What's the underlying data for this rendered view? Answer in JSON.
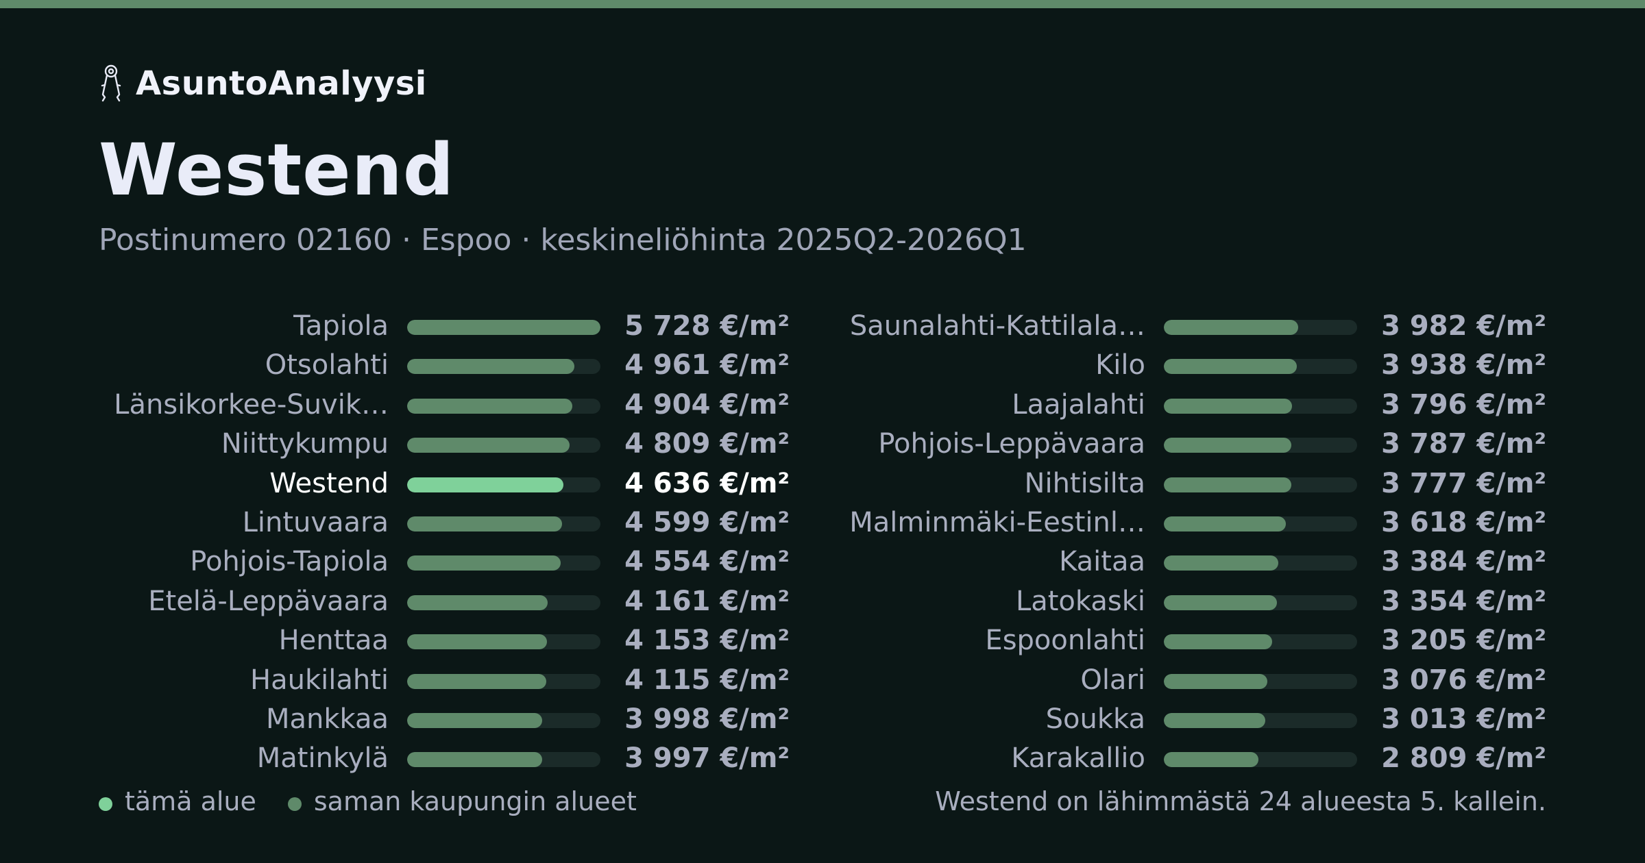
{
  "brand": {
    "name": "AsuntoAnalyysi",
    "icon": "keys-icon"
  },
  "title": "Westend",
  "subtitle": "Postinumero 02160 · Espoo · keskineliöhinta 2025Q2-2026Q1",
  "colors": {
    "accent": "#7fd19a",
    "bar": "#5f8a6a",
    "track": "#1b2b29",
    "background": "#0b1716"
  },
  "chart_data": {
    "type": "bar",
    "orientation": "horizontal",
    "unit": "€/m²",
    "max_value": 5728,
    "highlight": "Westend",
    "columns": [
      [
        {
          "name": "Tapiola",
          "value": 5728,
          "label": "5 728 €/m²"
        },
        {
          "name": "Otsolahti",
          "value": 4961,
          "label": "4 961 €/m²"
        },
        {
          "name": "Länsikorkee-Suvik…",
          "value": 4904,
          "label": "4 904 €/m²"
        },
        {
          "name": "Niittykumpu",
          "value": 4809,
          "label": "4 809 €/m²"
        },
        {
          "name": "Westend",
          "value": 4636,
          "label": "4 636 €/m²"
        },
        {
          "name": "Lintuvaara",
          "value": 4599,
          "label": "4 599 €/m²"
        },
        {
          "name": "Pohjois-Tapiola",
          "value": 4554,
          "label": "4 554 €/m²"
        },
        {
          "name": "Etelä-Leppävaara",
          "value": 4161,
          "label": "4 161 €/m²"
        },
        {
          "name": "Henttaa",
          "value": 4153,
          "label": "4 153 €/m²"
        },
        {
          "name": "Haukilahti",
          "value": 4115,
          "label": "4 115 €/m²"
        },
        {
          "name": "Mankkaa",
          "value": 3998,
          "label": "3 998 €/m²"
        },
        {
          "name": "Matinkylä",
          "value": 3997,
          "label": "3 997 €/m²"
        }
      ],
      [
        {
          "name": "Saunalahti-Kattilala…",
          "value": 3982,
          "label": "3 982 €/m²"
        },
        {
          "name": "Kilo",
          "value": 3938,
          "label": "3 938 €/m²"
        },
        {
          "name": "Laajalahti",
          "value": 3796,
          "label": "3 796 €/m²"
        },
        {
          "name": "Pohjois-Leppävaara",
          "value": 3787,
          "label": "3 787 €/m²"
        },
        {
          "name": "Nihtisilta",
          "value": 3777,
          "label": "3 777 €/m²"
        },
        {
          "name": "Malminmäki-Eestinl…",
          "value": 3618,
          "label": "3 618 €/m²"
        },
        {
          "name": "Kaitaa",
          "value": 3384,
          "label": "3 384 €/m²"
        },
        {
          "name": "Latokaski",
          "value": 3354,
          "label": "3 354 €/m²"
        },
        {
          "name": "Espoonlahti",
          "value": 3205,
          "label": "3 205 €/m²"
        },
        {
          "name": "Olari",
          "value": 3076,
          "label": "3 076 €/m²"
        },
        {
          "name": "Soukka",
          "value": 3013,
          "label": "3 013 €/m²"
        },
        {
          "name": "Karakallio",
          "value": 2809,
          "label": "2 809 €/m²"
        }
      ]
    ]
  },
  "legend": [
    {
      "label": "tämä alue",
      "color": "#7fd19a"
    },
    {
      "label": "saman kaupungin alueet",
      "color": "#5f8a6a"
    }
  ],
  "footnote": "Westend on lähimmästä 24 alueesta 5. kallein."
}
